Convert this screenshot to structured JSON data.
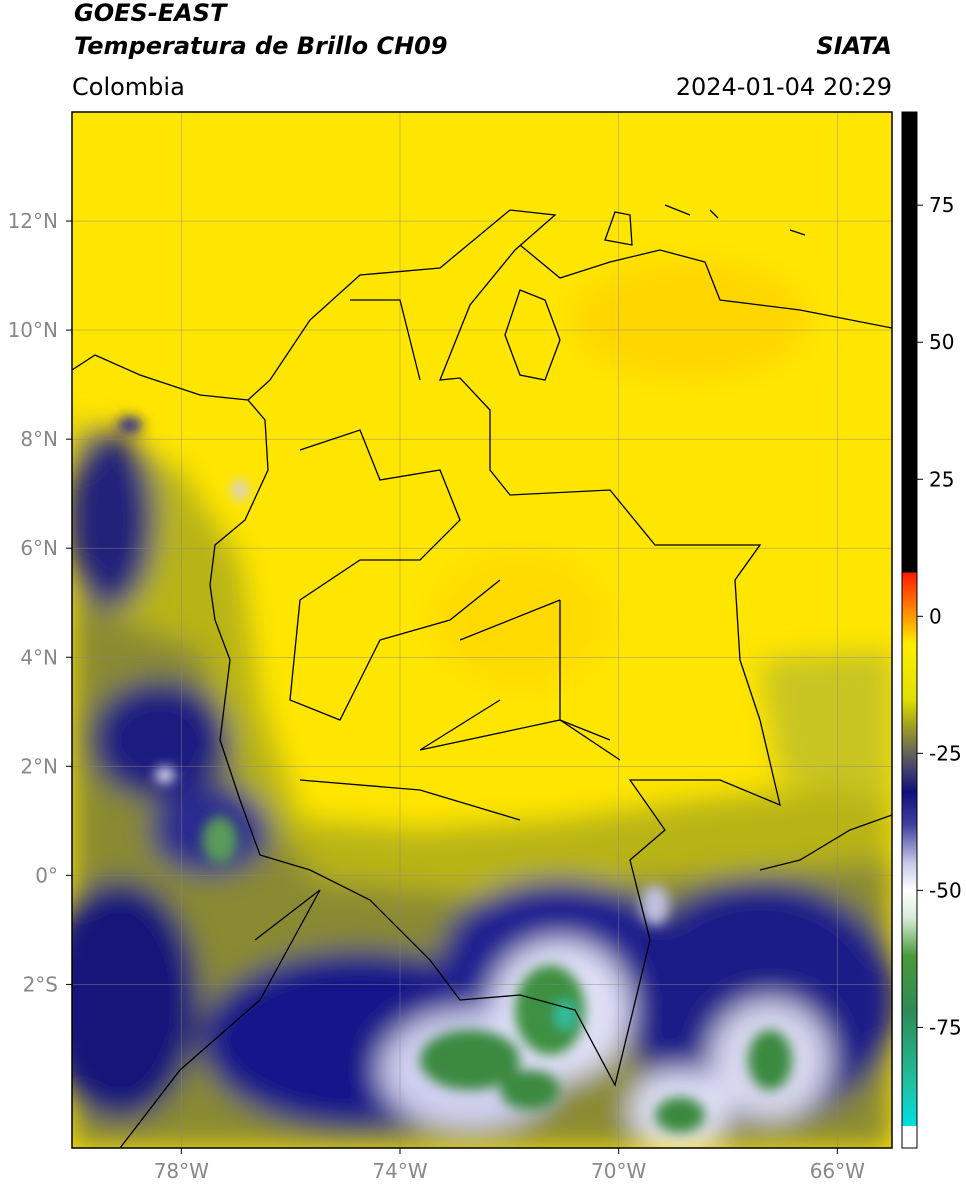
{
  "chart_data": {
    "type": "map",
    "title": "GOES-EAST",
    "subtitle": "Temperatura de Brillo CH09",
    "source": "SIATA",
    "region": "Colombia",
    "timestamp": "2024-01-04 20:29",
    "xlim": [
      -80,
      -65
    ],
    "ylim": [
      -5,
      14
    ],
    "xticks": [
      {
        "value": -78,
        "label": "78°W"
      },
      {
        "value": -74,
        "label": "74°W"
      },
      {
        "value": -70,
        "label": "70°W"
      },
      {
        "value": -66,
        "label": "66°W"
      }
    ],
    "yticks": [
      {
        "value": 12,
        "label": "12°N"
      },
      {
        "value": 10,
        "label": "10°N"
      },
      {
        "value": 8,
        "label": "8°N"
      },
      {
        "value": 6,
        "label": "6°N"
      },
      {
        "value": 4,
        "label": "4°N"
      },
      {
        "value": 2,
        "label": "2°N"
      },
      {
        "value": 0,
        "label": "0°"
      },
      {
        "value": -2,
        "label": "2°S"
      }
    ],
    "grid": true,
    "colorbar": {
      "lim": [
        -97,
        92
      ],
      "ticks": [
        75,
        50,
        25,
        0,
        -25,
        -50,
        -75
      ],
      "stops": [
        [
          -97,
          "#ffffff"
        ],
        [
          -93,
          "#ffffff"
        ],
        [
          -93,
          "#00e0e0"
        ],
        [
          -85,
          "#20c0a0"
        ],
        [
          -72,
          "#2e8b57"
        ],
        [
          -62,
          "#4a9a3a"
        ],
        [
          -55,
          "#d8ecd8"
        ],
        [
          -50,
          "#ffffff"
        ],
        [
          -45,
          "#c8c8e8"
        ],
        [
          -38,
          "#4040a0"
        ],
        [
          -32,
          "#10107a"
        ],
        [
          -28,
          "#404070"
        ],
        [
          -24,
          "#707050"
        ],
        [
          -20,
          "#a0a020"
        ],
        [
          -15,
          "#e0e000"
        ],
        [
          -5,
          "#ffee00"
        ],
        [
          0,
          "#ff9900"
        ],
        [
          8,
          "#ff1a00"
        ],
        [
          8,
          "#000000"
        ],
        [
          92,
          "#000000"
        ]
      ]
    }
  }
}
